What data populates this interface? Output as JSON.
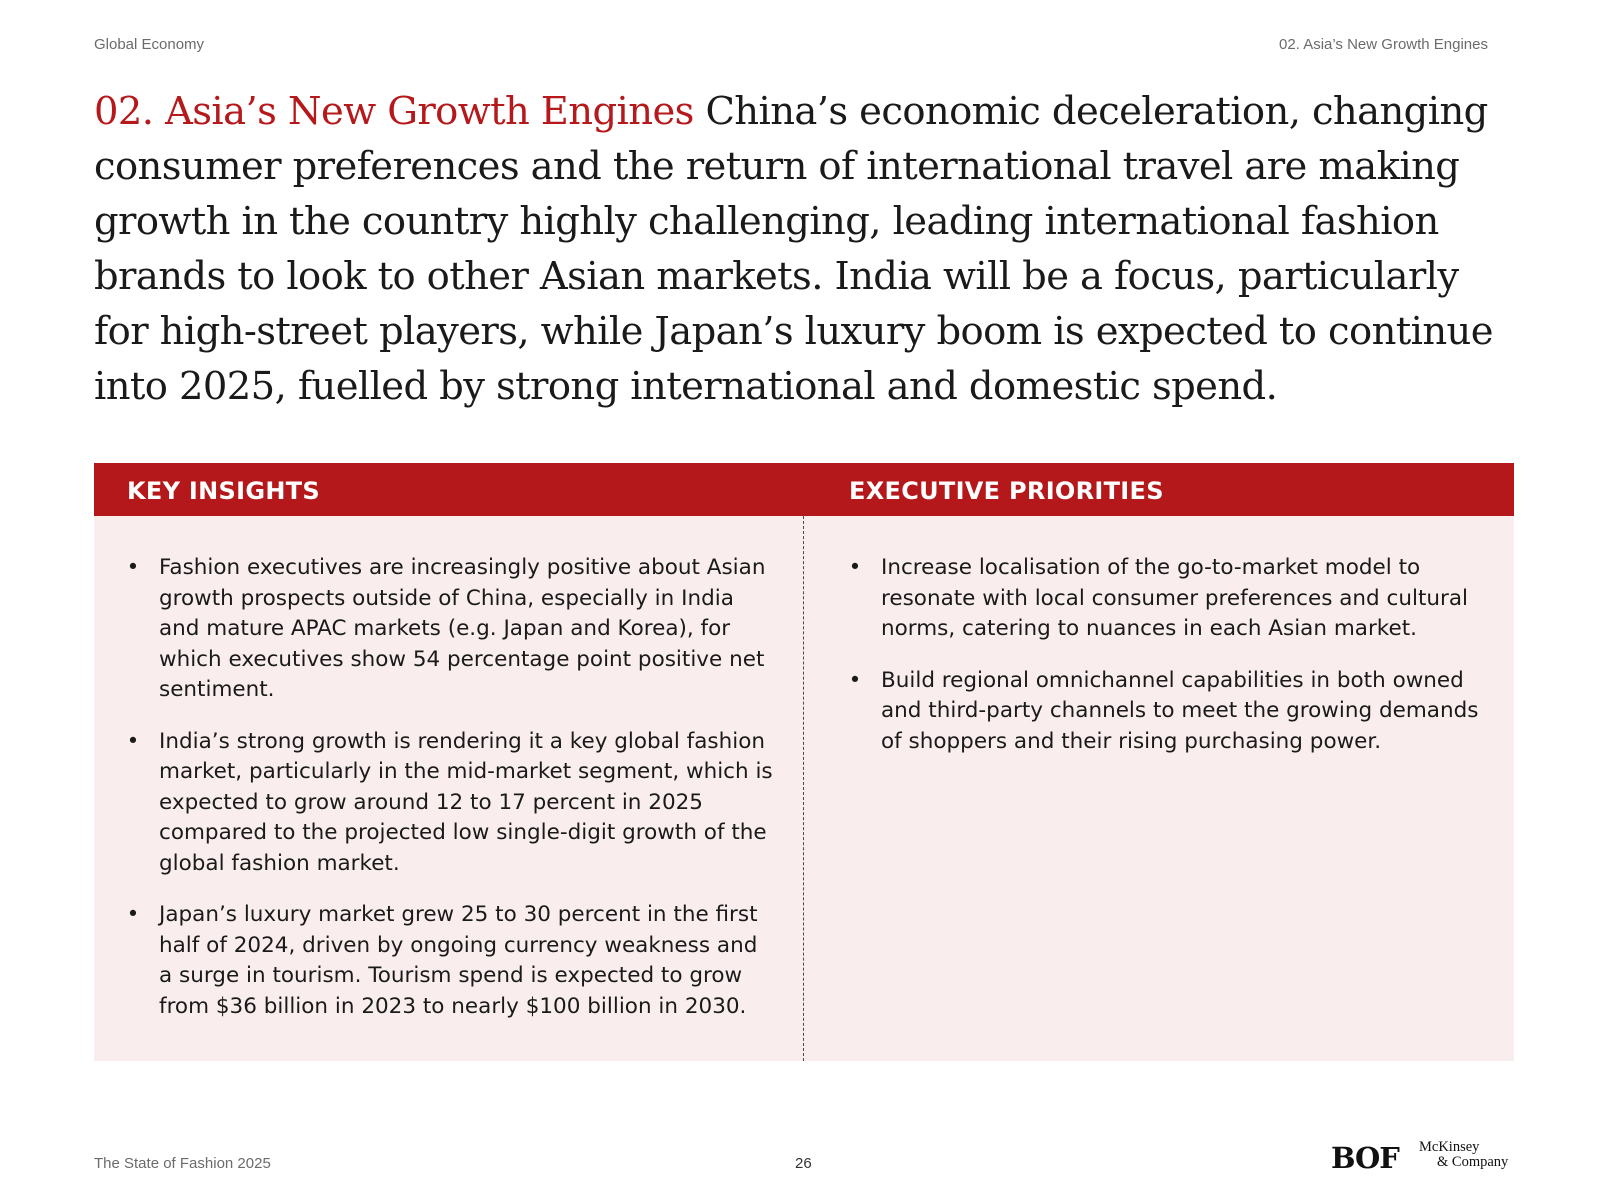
{
  "running_head": {
    "left": "Global Economy",
    "right": "02. Asia’s New Growth Engines"
  },
  "headline": {
    "accent": "02. Asia’s New Growth Engines",
    "body": "China’s economic deceleration, changing consumer preferences and the return of international travel are making growth in the country highly challenging, leading international fashion brands to look to other Asian markets. India will be a focus, particularly for high-street players, while Japan’s luxury boom is expected to continue into 2025, fuelled by strong international and domestic spend."
  },
  "colors": {
    "accent": "#b5191b",
    "panel_bg": "#f9eeed"
  },
  "key_insights": {
    "title": "KEY INSIGHTS",
    "bullet": "•",
    "items": [
      "Fashion executives are increasingly positive about Asian growth prospects outside of China, especially in India and mature APAC markets (e.g. Japan and Korea), for which executives show 54 percentage point positive net sentiment.",
      "India’s strong growth is rendering it a key global fashion market, particularly in the mid-market segment, which is expected to grow around 12 to 17 percent in 2025 compared to the projected low single-digit growth of the global fashion market.",
      "Japan’s luxury market grew 25 to 30 percent in the first half of 2024, driven by ongoing currency weakness and a surge in tourism. Tourism spend is expected to grow from $36 billion in 2023 to nearly $100 billion in 2030."
    ]
  },
  "executive_priorities": {
    "title": "EXECUTIVE PRIORITIES",
    "bullet": "•",
    "items": [
      "Increase localisation of the go-to-market model to resonate with local consumer preferences and cultural norms, catering to nuances in each Asian market.",
      "Build regional omnichannel capabilities in both owned and third-party channels to meet the growing demands of shoppers and their rising purchasing power."
    ]
  },
  "footer": {
    "publication": "The State of Fashion 2025",
    "page_number": "26",
    "logo_bof": "BOF",
    "logo_mckinsey_line1": "McKinsey",
    "logo_mckinsey_line2": "& Company"
  }
}
